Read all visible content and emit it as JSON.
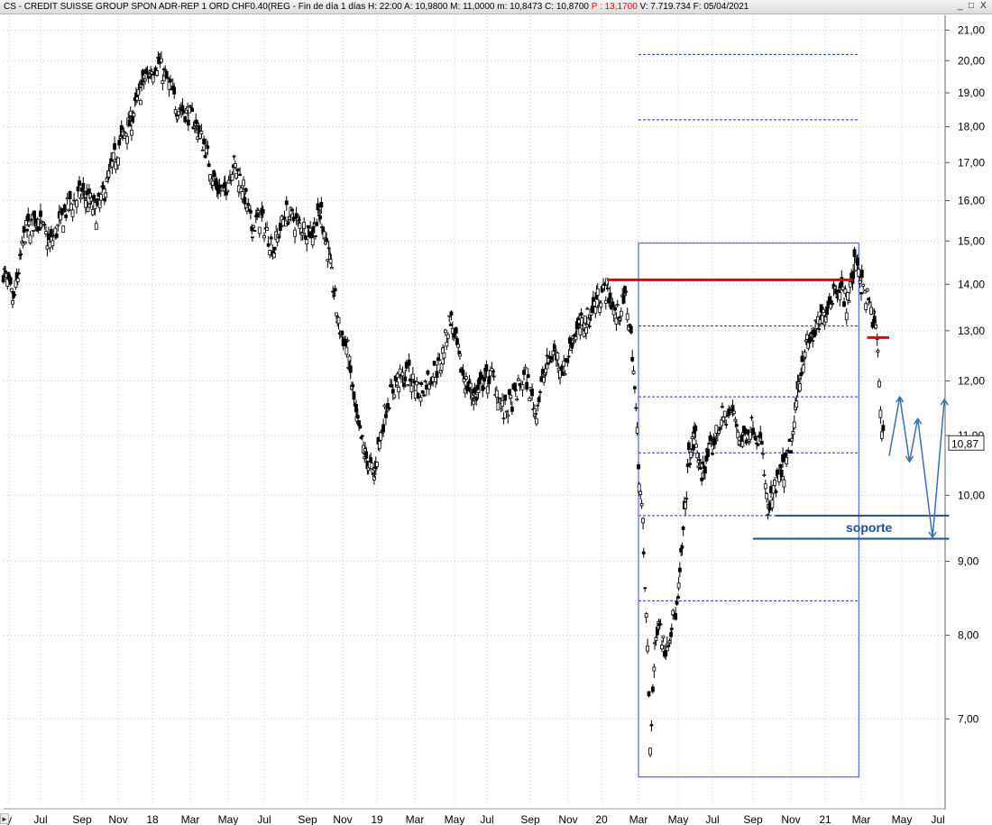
{
  "header": {
    "title": "CS - CREDIT SUISSE GROUP SPON ADR-REP 1 ORD CHF0.40(REG - Fin de día 1 días  H: 22:00  A: 10,9800  M: 11,0000  m: 10,8473  C: 10,8700",
    "prev_close": " P : 13,1700",
    "volume_date": "  V: 7.719.734  F: 05/04/2021",
    "minimize": "_",
    "restore": "□",
    "close": "X"
  },
  "colors": {
    "candles": "#000000",
    "resistance": "#ee0000",
    "support": "#1f4e99",
    "fib_box": "#3344ee",
    "fib_levels": "#2233cc",
    "projection": "#3a70b0",
    "grid": "#c8c8c8"
  },
  "chart_data": {
    "type": "candlestick",
    "title": "CS - CREDIT SUISSE GROUP SPON ADR-REP 1 ORD CHF0.40(REG",
    "scale": "log",
    "ylim": [
      6.1,
      21.5
    ],
    "grid": true,
    "y_ticks": [
      "21,00",
      "20,00",
      "19,00",
      "18,00",
      "17,00",
      "16,00",
      "15,00",
      "14,00",
      "13,00",
      "12,00",
      "11,00",
      "10,00",
      "9,00",
      "8,00",
      "7,00"
    ],
    "y_tick_values": [
      21,
      20,
      19,
      18,
      17,
      16,
      15,
      14,
      13,
      12,
      11,
      10,
      9,
      8,
      7
    ],
    "x_ticks": [
      "y",
      "Jul",
      "Sep",
      "Nov",
      "18",
      "Mar",
      "May",
      "Jul",
      "Sep",
      "Nov",
      "19",
      "Mar",
      "May",
      "Jul",
      "Sep",
      "Nov",
      "20",
      "Mar",
      "May",
      "Jul",
      "Sep",
      "Nov",
      "21",
      "Mar",
      "May",
      "Jul"
    ],
    "x_tick_dates": [
      "2017-05-01",
      "2017-07-01",
      "2017-09-01",
      "2017-11-01",
      "2018-01-01",
      "2018-03-01",
      "2018-05-01",
      "2018-07-01",
      "2018-09-01",
      "2018-11-01",
      "2019-01-01",
      "2019-03-01",
      "2019-05-01",
      "2019-07-01",
      "2019-09-01",
      "2019-11-01",
      "2020-01-01",
      "2020-03-01",
      "2020-05-01",
      "2020-07-01",
      "2020-09-01",
      "2020-11-01",
      "2021-01-01",
      "2021-03-01",
      "2021-05-01",
      "2021-07-01"
    ],
    "series": [
      {
        "x": [
          "2017-04-20",
          "2017-05-10",
          "2017-06-01",
          "2017-06-25",
          "2017-07-15",
          "2017-08-10",
          "2017-09-01",
          "2017-09-25",
          "2017-10-15",
          "2017-11-05",
          "2017-11-25",
          "2017-12-15",
          "2018-01-10",
          "2018-01-25",
          "2018-02-08",
          "2018-02-25",
          "2018-03-10",
          "2018-03-25",
          "2018-04-10",
          "2018-04-25",
          "2018-05-10",
          "2018-05-25",
          "2018-06-10",
          "2018-06-25",
          "2018-07-15",
          "2018-08-01",
          "2018-08-20",
          "2018-09-10",
          "2018-09-25",
          "2018-10-10",
          "2018-10-25",
          "2018-11-10",
          "2018-11-25",
          "2018-12-10",
          "2018-12-27",
          "2019-01-15",
          "2019-02-01",
          "2019-02-20",
          "2019-03-10",
          "2019-03-25",
          "2019-04-10",
          "2019-04-25",
          "2019-05-10",
          "2019-05-25",
          "2019-06-10",
          "2019-06-25",
          "2019-07-10",
          "2019-07-25",
          "2019-08-10",
          "2019-08-25",
          "2019-09-10",
          "2019-09-25",
          "2019-10-10",
          "2019-10-25",
          "2019-11-10",
          "2019-11-25",
          "2019-12-10",
          "2019-12-25",
          "2020-01-10",
          "2020-01-25",
          "2020-02-10",
          "2020-02-20",
          "2020-03-01",
          "2020-03-08",
          "2020-03-15",
          "2020-03-19",
          "2020-03-25",
          "2020-04-01",
          "2020-04-10",
          "2020-04-20",
          "2020-05-01",
          "2020-05-10",
          "2020-05-20",
          "2020-06-01",
          "2020-06-10",
          "2020-06-20",
          "2020-07-01",
          "2020-07-15",
          "2020-08-01",
          "2020-08-15",
          "2020-09-01",
          "2020-09-15",
          "2020-09-25",
          "2020-10-10",
          "2020-10-25",
          "2020-11-05",
          "2020-11-15",
          "2020-11-25",
          "2020-12-10",
          "2020-12-25",
          "2021-01-10",
          "2021-01-25",
          "2021-02-05",
          "2021-02-15",
          "2021-02-22",
          "2021-03-01",
          "2021-03-10",
          "2021-03-20",
          "2021-03-25",
          "2021-04-01",
          "2021-04-05"
        ],
        "y": [
          14.3,
          13.6,
          15.2,
          15.6,
          14.9,
          15.8,
          16.2,
          15.7,
          16.5,
          17.6,
          18.2,
          19.3,
          20.0,
          19.3,
          18.6,
          18.4,
          18.1,
          17.4,
          16.4,
          16.2,
          17.0,
          16.4,
          15.3,
          15.6,
          14.8,
          15.7,
          15.4,
          15.2,
          15.7,
          14.5,
          13.1,
          12.6,
          11.3,
          10.7,
          10.3,
          11.5,
          12.0,
          12.1,
          11.8,
          12.1,
          12.3,
          13.3,
          12.4,
          11.9,
          11.7,
          12.0,
          12.1,
          11.4,
          11.7,
          12.1,
          11.4,
          12.2,
          12.6,
          12.2,
          12.9,
          13.1,
          13.3,
          13.7,
          13.9,
          13.3,
          13.7,
          12.6,
          10.6,
          9.5,
          7.8,
          6.7,
          7.6,
          8.3,
          7.8,
          8.1,
          8.4,
          9.4,
          10.6,
          11.0,
          10.3,
          10.6,
          10.8,
          11.3,
          11.4,
          10.9,
          11.2,
          10.8,
          9.7,
          10.2,
          10.5,
          11.0,
          12.0,
          12.6,
          12.9,
          13.2,
          13.7,
          14.0,
          13.6,
          14.1,
          14.7,
          14.0,
          13.7,
          13.2,
          12.9,
          11.1,
          10.87
        ]
      }
    ],
    "annotations": {
      "resistance": [
        {
          "y": 14.1,
          "x_start": "2020-01-10",
          "x_end": "2021-02-15"
        },
        {
          "y": 12.86,
          "x_start": "2021-03-10",
          "x_end": "2021-04-12"
        }
      ],
      "support_channel": {
        "y_low": 9.33,
        "y_high": 9.68,
        "x_start": "2020-09-01",
        "x_end": "2021-07-20",
        "label": "soporte"
      },
      "fib_box": {
        "x_start": "2020-03-01",
        "x_end": "2021-02-25",
        "y_low": 6.38,
        "y_high": 14.95
      },
      "fib_levels": [
        20.2,
        18.2,
        13.1,
        11.7,
        10.7,
        9.68,
        8.45
      ],
      "projection": {
        "x": [
          "2021-04-12",
          "2021-04-28",
          "2021-05-14",
          "2021-05-28",
          "2021-06-22",
          "2021-07-12"
        ],
        "y": [
          10.65,
          11.7,
          10.55,
          11.3,
          9.35,
          11.65
        ]
      },
      "last_price_label": "10,87",
      "last_price": 10.87
    }
  }
}
